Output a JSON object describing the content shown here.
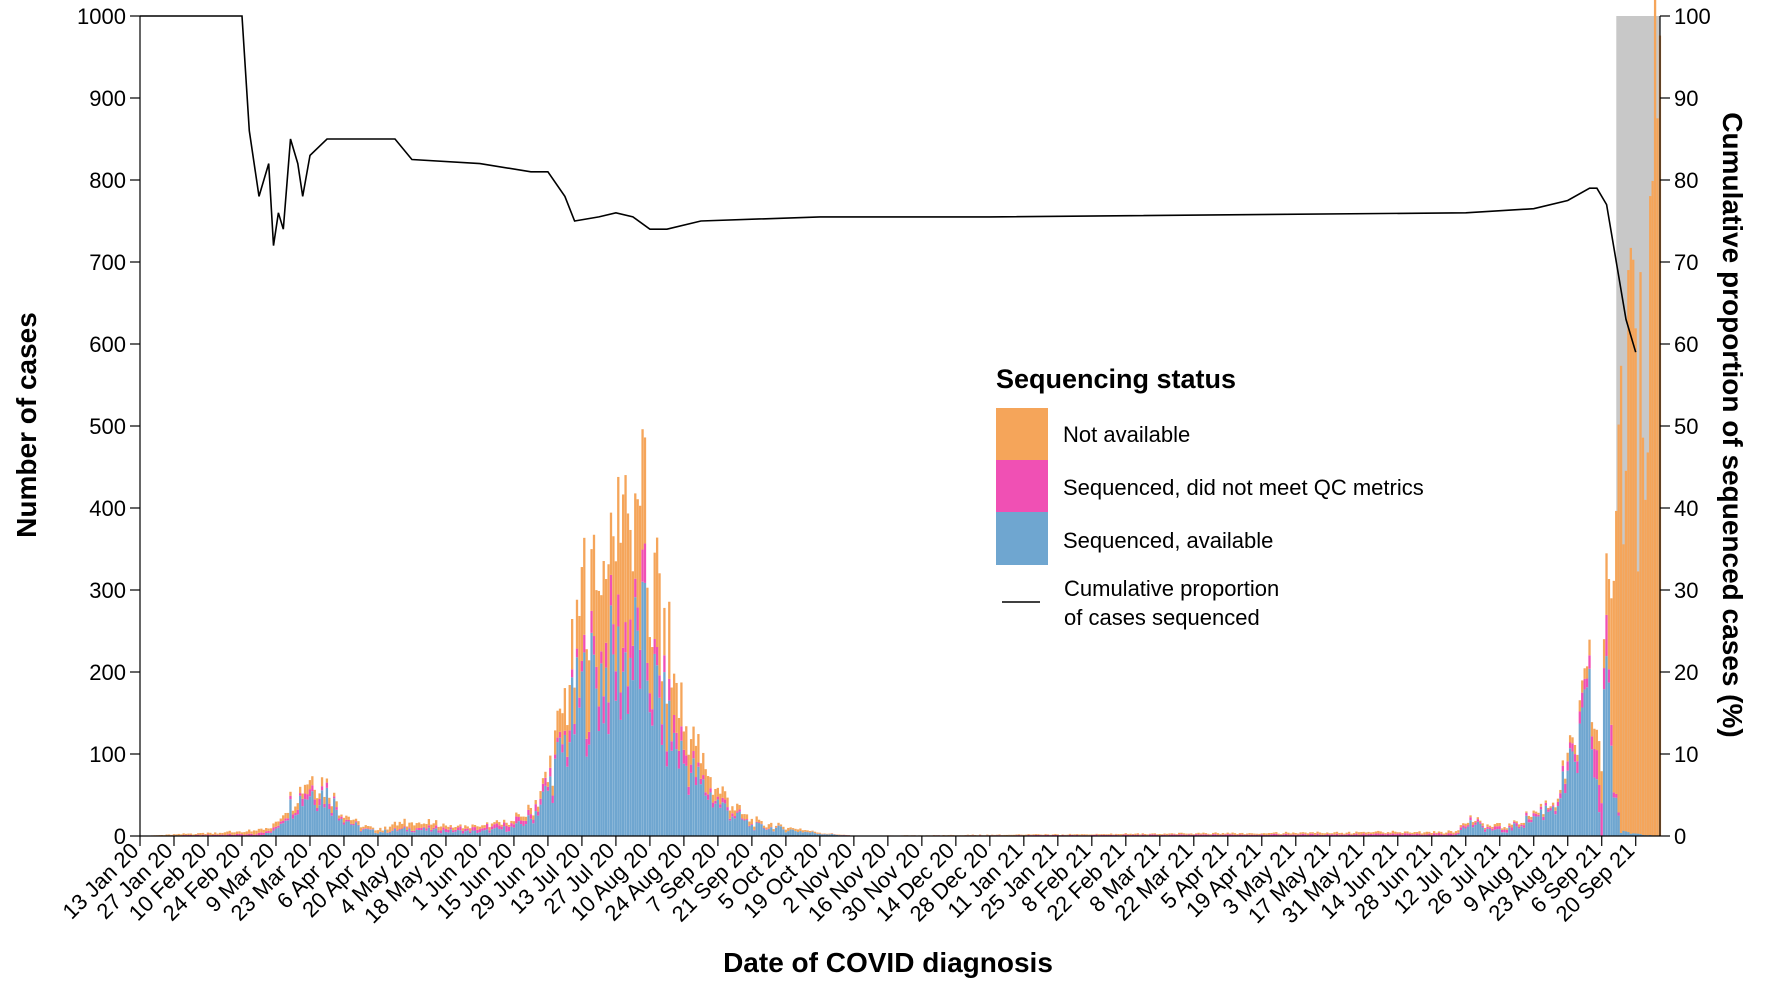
{
  "chart_data": {
    "type": "bar",
    "xlabel": "Date of COVID diagnosis",
    "ylabel": "Number of cases",
    "y2label": "Cumulative proportion of sequenced cases (%)",
    "ylim": [
      0,
      1000
    ],
    "y2lim": [
      0,
      100
    ],
    "yticks": [
      "0",
      "100",
      "200",
      "300",
      "400",
      "500",
      "600",
      "700",
      "800",
      "900",
      "1000"
    ],
    "y2ticks": [
      "0",
      "10",
      "20",
      "30",
      "40",
      "50",
      "60",
      "70",
      "80",
      "90",
      "100"
    ],
    "x_tick_labels": [
      "13 Jan 20",
      "27 Jan 20",
      "10 Feb 20",
      "24 Feb 20",
      "9 Mar 20",
      "23 Mar 20",
      "6 Apr 20",
      "20 Apr 20",
      "4 May 20",
      "18 May 20",
      "1 Jun 20",
      "15 Jun 20",
      "29 Jun 20",
      "13 Jul 20",
      "27 Jul 20",
      "10 Aug 20",
      "24 Aug 20",
      "7 Sep 20",
      "21 Sep 20",
      "5 Oct 20",
      "19 Oct 20",
      "2 Nov 20",
      "16 Nov 20",
      "30 Nov 20",
      "14 Dec 20",
      "28 Dec 20",
      "11 Jan 21",
      "25 Jan 21",
      "8 Feb 21",
      "22 Feb 21",
      "8 Mar 21",
      "22 Mar 21",
      "5 Apr 21",
      "19 Apr 21",
      "3 May 21",
      "17 May 21",
      "31 May 21",
      "14 Jun 21",
      "28 Jun 21",
      "12 Jul 21",
      "26 Jul 21",
      "9 Aug 21",
      "23 Aug 21",
      "6 Sep 21",
      "20 Sep 21"
    ],
    "x_range": [
      "13 Jan 20",
      "30 Sep 21"
    ],
    "shaded_region": [
      "12 Sep 21",
      "30 Sep 21"
    ],
    "grid": false,
    "stacked": true,
    "legend": {
      "title": "Sequencing status",
      "placement": "center-right"
    },
    "series": [
      {
        "name": "Sequenced, available",
        "color": "#6fa6d0",
        "anchors": [
          [
            "13 Jan 20",
            0
          ],
          [
            "1 Mar 20",
            0
          ],
          [
            "8 Mar 20",
            5
          ],
          [
            "15 Mar 20",
            35
          ],
          [
            "23 Mar 20",
            55
          ],
          [
            "30 Mar 20",
            50
          ],
          [
            "6 Apr 20",
            22
          ],
          [
            "13 Apr 20",
            8
          ],
          [
            "20 Apr 20",
            5
          ],
          [
            "4 May 20",
            8
          ],
          [
            "18 May 20",
            6
          ],
          [
            "1 Jun 20",
            5
          ],
          [
            "15 Jun 20",
            10
          ],
          [
            "22 Jun 20",
            20
          ],
          [
            "29 Jun 20",
            55
          ],
          [
            "6 Jul 20",
            110
          ],
          [
            "13 Jul 20",
            170
          ],
          [
            "20 Jul 20",
            190
          ],
          [
            "27 Jul 20",
            200
          ],
          [
            "3 Aug 20",
            215
          ],
          [
            "7 Aug 20",
            230
          ],
          [
            "10 Aug 20",
            190
          ],
          [
            "17 Aug 20",
            130
          ],
          [
            "24 Aug 20",
            90
          ],
          [
            "31 Aug 20",
            60
          ],
          [
            "7 Sep 20",
            40
          ],
          [
            "14 Sep 20",
            25
          ],
          [
            "21 Sep 20",
            12
          ],
          [
            "5 Oct 20",
            8
          ],
          [
            "19 Oct 20",
            3
          ],
          [
            "2 Nov 20",
            0
          ],
          [
            "7 Jul 21",
            0
          ],
          [
            "14 Jul 21",
            15
          ],
          [
            "21 Jul 21",
            8
          ],
          [
            "28 Jul 21",
            5
          ],
          [
            "4 Aug 21",
            15
          ],
          [
            "11 Aug 21",
            25
          ],
          [
            "18 Aug 21",
            40
          ],
          [
            "25 Aug 21",
            80
          ],
          [
            "1 Sep 21",
            150
          ],
          [
            "6 Sep21",
            0
          ],
          [
            "8 Sep 21",
            260
          ],
          [
            "11 Sep 21",
            60
          ],
          [
            "14 Sep 21",
            5
          ],
          [
            "30 Sep 21",
            0
          ]
        ]
      },
      {
        "name": "Sequenced, did not meet QC metrics",
        "color": "#f050b4",
        "anchors": [
          [
            "13 Jan 20",
            0
          ],
          [
            "15 Mar 20",
            3
          ],
          [
            "23 Mar 20",
            8
          ],
          [
            "6 Apr 20",
            2
          ],
          [
            "20 Apr 20",
            0
          ],
          [
            "6 Jul 20",
            8
          ],
          [
            "20 Jul 20",
            25
          ],
          [
            "3 Aug 20",
            35
          ],
          [
            "10 Aug 20",
            35
          ],
          [
            "17 Aug 20",
            20
          ],
          [
            "31 Aug 20",
            6
          ],
          [
            "21 Sep 20",
            1
          ],
          [
            "5 Oct 20",
            0
          ],
          [
            "18 Aug 21",
            3
          ],
          [
            "1 Sep 21",
            20
          ],
          [
            "8 Sep 21",
            35
          ],
          [
            "11 Sep 21",
            10
          ],
          [
            "14 Sep 21",
            0
          ],
          [
            "30 Sep 21",
            0
          ]
        ]
      },
      {
        "name": "Not available",
        "color": "#f5a55a",
        "anchors": [
          [
            "13 Jan 20",
            0
          ],
          [
            "15 Mar 20",
            5
          ],
          [
            "23 Mar 20",
            10
          ],
          [
            "6 Apr 20",
            4
          ],
          [
            "20 Apr 20",
            3
          ],
          [
            "4 May 20",
            8
          ],
          [
            "18 May 20",
            4
          ],
          [
            "15 Jun 20",
            3
          ],
          [
            "29 Jun 20",
            8
          ],
          [
            "6 Jul 20",
            40
          ],
          [
            "13 Jul 20",
            80
          ],
          [
            "20 Jul 20",
            120
          ],
          [
            "27 Jul 20",
            140
          ],
          [
            "3 Aug 20",
            150
          ],
          [
            "7 Aug 20",
            130
          ],
          [
            "10 Aug 20",
            110
          ],
          [
            "17 Aug 20",
            70
          ],
          [
            "24 Aug 20",
            35
          ],
          [
            "7 Sep 20",
            12
          ],
          [
            "21 Sep 20",
            5
          ],
          [
            "5 Oct 20",
            3
          ],
          [
            "19 Oct 20",
            1
          ],
          [
            "2 Nov 20",
            0
          ],
          [
            "18 Aug 21",
            3
          ],
          [
            "1 Sep 21",
            15
          ],
          [
            "8 Sep 21",
            60
          ],
          [
            "11 Sep 21",
            300
          ],
          [
            "14 Sep 21",
            400
          ],
          [
            "18 Sep 21",
            500
          ],
          [
            "22 Sep 21",
            560
          ],
          [
            "26 Sep 21",
            700
          ],
          [
            "28 Sep 21",
            800
          ],
          [
            "30 Sep 21",
            700
          ]
        ]
      }
    ],
    "line_series": {
      "name": "Cumulative proportion of cases sequenced",
      "axis": "right",
      "color": "#000000",
      "points": [
        [
          "13 Jan 20",
          100
        ],
        [
          "24 Feb 20",
          100
        ],
        [
          "27 Feb 20",
          86
        ],
        [
          "2 Mar 20",
          78
        ],
        [
          "6 Mar 20",
          82
        ],
        [
          "8 Mar 20",
          72
        ],
        [
          "10 Mar 20",
          76
        ],
        [
          "12 Mar 20",
          74
        ],
        [
          "15 Mar 20",
          85
        ],
        [
          "18 Mar 20",
          82
        ],
        [
          "20 Mar 20",
          78
        ],
        [
          "23 Mar 20",
          83
        ],
        [
          "30 Mar 20",
          85
        ],
        [
          "13 Apr 20",
          85
        ],
        [
          "27 Apr 20",
          85
        ],
        [
          "4 May 20",
          82.5
        ],
        [
          "1 Jun 20",
          82
        ],
        [
          "22 Jun 20",
          81
        ],
        [
          "29 Jun 20",
          81
        ],
        [
          "6 Jul 20",
          78
        ],
        [
          "10 Jul 20",
          75
        ],
        [
          "20 Jul 20",
          75.5
        ],
        [
          "27 Jul 20",
          76
        ],
        [
          "3 Aug 20",
          75.5
        ],
        [
          "10 Aug 20",
          74
        ],
        [
          "17 Aug 20",
          74
        ],
        [
          "31 Aug 20",
          75
        ],
        [
          "19 Oct 20",
          75.5
        ],
        [
          "28 Dec 20",
          75.5
        ],
        [
          "12 Jul 21",
          76
        ],
        [
          "9 Aug 21",
          76.5
        ],
        [
          "23 Aug 21",
          77.5
        ],
        [
          "1 Sep 21",
          79
        ],
        [
          "4 Sep 21",
          79
        ],
        [
          "8 Sep 21",
          77
        ],
        [
          "12 Sep 21",
          70
        ],
        [
          "16 Sep 21",
          63
        ],
        [
          "20 Sep 21",
          59
        ]
      ]
    }
  },
  "legend_items": [
    {
      "label": "Not available",
      "color": "#f5a55a"
    },
    {
      "label": "Sequenced, did not meet QC metrics",
      "color": "#f050b4"
    },
    {
      "label": "Sequenced, available",
      "color": "#6fa6d0"
    }
  ],
  "legend_line_label_1": "Cumulative proportion",
  "legend_line_label_2": "of cases sequenced",
  "shade_color": "#c8c8c8"
}
